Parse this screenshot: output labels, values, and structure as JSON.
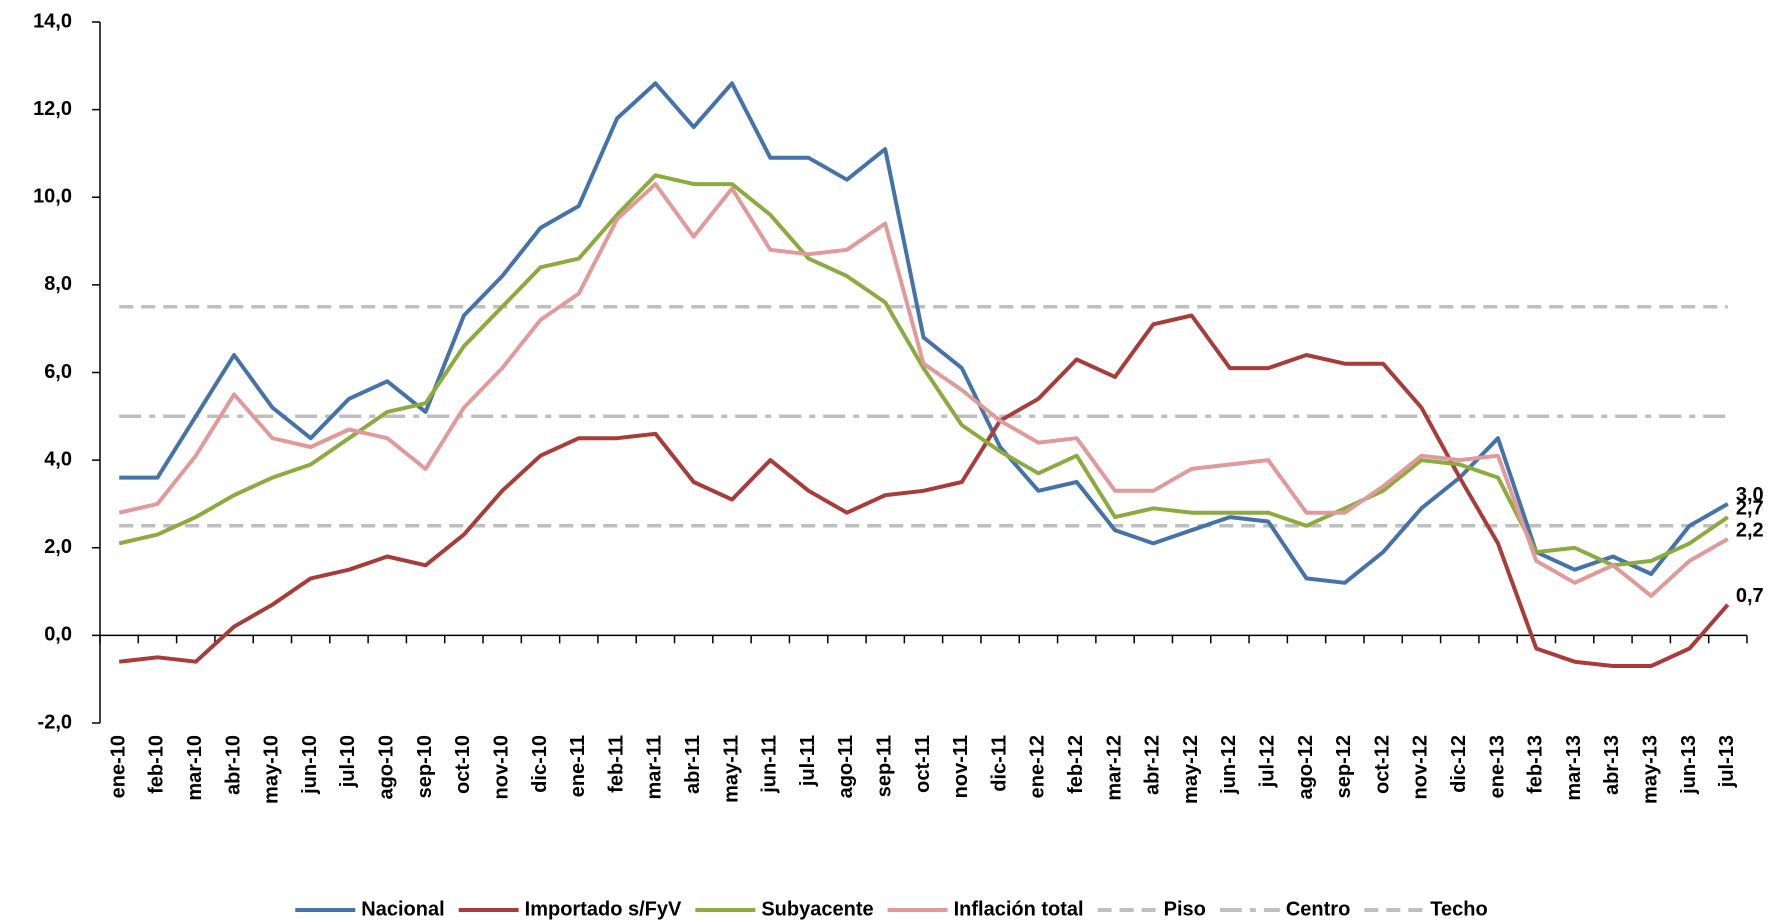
{
  "chart_data": {
    "type": "line",
    "categories": [
      "ene-10",
      "feb-10",
      "mar-10",
      "abr-10",
      "may-10",
      "jun-10",
      "jul-10",
      "ago-10",
      "sep-10",
      "oct-10",
      "nov-10",
      "dic-10",
      "ene-11",
      "feb-11",
      "mar-11",
      "abr-11",
      "may-11",
      "jun-11",
      "jul-11",
      "ago-11",
      "sep-11",
      "oct-11",
      "nov-11",
      "dic-11",
      "ene-12",
      "feb-12",
      "mar-12",
      "abr-12",
      "may-12",
      "jun-12",
      "jul-12",
      "ago-12",
      "sep-12",
      "oct-12",
      "nov-12",
      "dic-12",
      "ene-13",
      "feb-13",
      "mar-13",
      "abr-13",
      "may-13",
      "jun-13",
      "jul-13"
    ],
    "ylim": [
      -2,
      14
    ],
    "yticks": [
      {
        "value": -2,
        "label": "-2,0"
      },
      {
        "value": 0,
        "label": "0,0"
      },
      {
        "value": 2,
        "label": "2,0"
      },
      {
        "value": 4,
        "label": "4,0"
      },
      {
        "value": 6,
        "label": "6,0"
      },
      {
        "value": 8,
        "label": "8,0"
      },
      {
        "value": 10,
        "label": "10,0"
      },
      {
        "value": 12,
        "label": "12,0"
      },
      {
        "value": 14,
        "label": "14,0"
      }
    ],
    "legend": "bottom",
    "series": [
      {
        "name": "Nacional",
        "color": "#4573a7",
        "label_color": "#2f5f95",
        "dash": "solid",
        "values": [
          3.6,
          3.6,
          5.0,
          6.4,
          5.2,
          4.5,
          5.4,
          5.8,
          5.1,
          7.3,
          8.2,
          9.3,
          9.8,
          11.8,
          12.6,
          11.6,
          12.6,
          10.9,
          10.9,
          10.4,
          11.1,
          6.8,
          6.1,
          4.3,
          3.3,
          3.5,
          2.4,
          2.1,
          2.4,
          2.7,
          2.6,
          1.3,
          1.2,
          1.9,
          2.9,
          3.6,
          4.5,
          1.9,
          1.5,
          1.8,
          1.4,
          2.5,
          3.0
        ],
        "value_labels": [
          null,
          null,
          null,
          null,
          null,
          null,
          null,
          null,
          null,
          null,
          null,
          null,
          null,
          null,
          null,
          null,
          null,
          null,
          null,
          null,
          null,
          null,
          null,
          null,
          null,
          null,
          null,
          null,
          null,
          null,
          null,
          null,
          null,
          null,
          null,
          null,
          null,
          null,
          null,
          null,
          null,
          null,
          "3,0"
        ]
      },
      {
        "name": "Importado s/FyV",
        "color": "#a83c3a",
        "label_color": "#a83c3a",
        "dash": "solid",
        "values": [
          -0.6,
          -0.5,
          -0.6,
          0.2,
          0.7,
          1.3,
          1.5,
          1.8,
          1.6,
          2.3,
          3.3,
          4.1,
          4.5,
          4.5,
          4.6,
          3.5,
          3.1,
          4.0,
          3.3,
          2.8,
          3.2,
          3.3,
          3.5,
          4.9,
          5.4,
          6.3,
          5.9,
          7.1,
          7.3,
          6.1,
          6.1,
          6.4,
          6.2,
          6.2,
          5.2,
          3.6,
          2.1,
          -0.3,
          -0.6,
          -0.7,
          -0.7,
          -0.3,
          0.7
        ],
        "value_labels": [
          null,
          null,
          null,
          null,
          null,
          null,
          null,
          null,
          null,
          null,
          null,
          null,
          null,
          null,
          null,
          null,
          null,
          null,
          null,
          null,
          null,
          null,
          null,
          null,
          null,
          null,
          null,
          null,
          null,
          null,
          null,
          null,
          null,
          null,
          null,
          null,
          null,
          null,
          null,
          null,
          null,
          null,
          "0,7"
        ]
      },
      {
        "name": "Subyacente",
        "color": "#8bab3f",
        "label_color": "#7f8f00",
        "dash": "solid",
        "values": [
          2.1,
          2.3,
          2.7,
          3.2,
          3.6,
          3.9,
          4.5,
          5.1,
          5.3,
          6.6,
          7.5,
          8.4,
          8.6,
          9.6,
          10.5,
          10.3,
          10.3,
          9.6,
          8.6,
          8.2,
          7.6,
          6.1,
          4.8,
          4.2,
          3.7,
          4.1,
          2.7,
          2.9,
          2.8,
          2.8,
          2.8,
          2.5,
          2.9,
          3.3,
          4.0,
          3.9,
          3.6,
          1.9,
          2.0,
          1.6,
          1.7,
          2.1,
          2.7
        ],
        "value_labels": [
          null,
          null,
          null,
          null,
          null,
          null,
          null,
          null,
          null,
          null,
          null,
          null,
          null,
          null,
          null,
          null,
          null,
          null,
          null,
          null,
          null,
          null,
          null,
          null,
          null,
          null,
          null,
          null,
          null,
          null,
          null,
          null,
          null,
          null,
          null,
          null,
          null,
          null,
          null,
          null,
          null,
          null,
          "2,7"
        ]
      },
      {
        "name": "Inflación total",
        "color": "#e09a9a",
        "label_color": "#e09a9a",
        "dash": "solid",
        "values": [
          2.8,
          3.0,
          4.1,
          5.5,
          4.5,
          4.3,
          4.7,
          4.5,
          3.8,
          5.2,
          6.1,
          7.2,
          7.8,
          9.5,
          10.3,
          9.1,
          10.2,
          8.8,
          8.7,
          8.8,
          9.4,
          6.2,
          5.6,
          4.9,
          4.4,
          4.5,
          3.3,
          3.3,
          3.8,
          3.9,
          4.0,
          2.8,
          2.8,
          3.4,
          4.1,
          4.0,
          4.1,
          1.7,
          1.2,
          1.6,
          0.9,
          1.7,
          2.2
        ],
        "value_labels": [
          null,
          null,
          null,
          null,
          null,
          null,
          null,
          null,
          null,
          null,
          null,
          null,
          null,
          null,
          null,
          null,
          null,
          null,
          null,
          null,
          null,
          null,
          null,
          null,
          null,
          null,
          null,
          null,
          null,
          null,
          null,
          null,
          null,
          null,
          null,
          null,
          null,
          null,
          null,
          null,
          null,
          null,
          "2,2"
        ]
      },
      {
        "name": "Piso",
        "color": "#bfbfbf",
        "dash": "dashed",
        "values": [
          2.5,
          2.5,
          2.5,
          2.5,
          2.5,
          2.5,
          2.5,
          2.5,
          2.5,
          2.5,
          2.5,
          2.5,
          2.5,
          2.5,
          2.5,
          2.5,
          2.5,
          2.5,
          2.5,
          2.5,
          2.5,
          2.5,
          2.5,
          2.5,
          2.5,
          2.5,
          2.5,
          2.5,
          2.5,
          2.5,
          2.5,
          2.5,
          2.5,
          2.5,
          2.5,
          2.5,
          2.5,
          2.5,
          2.5,
          2.5,
          2.5,
          2.5,
          2.5
        ]
      },
      {
        "name": "Centro",
        "color": "#bfbfbf",
        "dash": "dashdot",
        "values": [
          5,
          5,
          5,
          5,
          5,
          5,
          5,
          5,
          5,
          5,
          5,
          5,
          5,
          5,
          5,
          5,
          5,
          5,
          5,
          5,
          5,
          5,
          5,
          5,
          5,
          5,
          5,
          5,
          5,
          5,
          5,
          5,
          5,
          5,
          5,
          5,
          5,
          5,
          5,
          5,
          5,
          5,
          5
        ]
      },
      {
        "name": "Techo",
        "color": "#bfbfbf",
        "dash": "dashed",
        "values": [
          7.5,
          7.5,
          7.5,
          7.5,
          7.5,
          7.5,
          7.5,
          7.5,
          7.5,
          7.5,
          7.5,
          7.5,
          7.5,
          7.5,
          7.5,
          7.5,
          7.5,
          7.5,
          7.5,
          7.5,
          7.5,
          7.5,
          7.5,
          7.5,
          7.5,
          7.5,
          7.5,
          7.5,
          7.5,
          7.5,
          7.5,
          7.5,
          7.5,
          7.5,
          7.5,
          7.5,
          7.5,
          7.5,
          7.5,
          7.5,
          7.5,
          7.5,
          7.5
        ]
      }
    ]
  }
}
